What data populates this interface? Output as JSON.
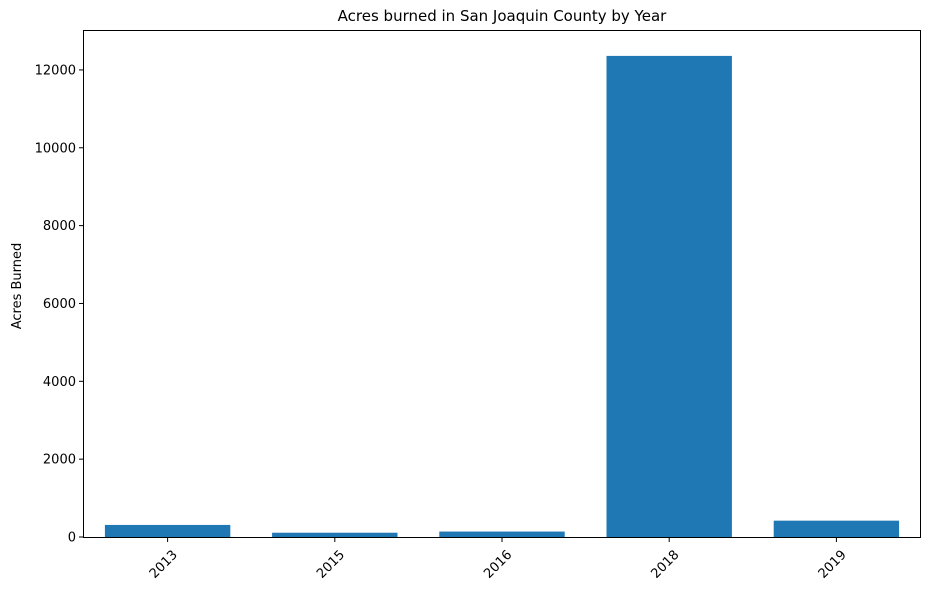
{
  "chart_data": {
    "type": "bar",
    "title": "Acres burned in San Joaquin County by Year",
    "xlabel": "",
    "ylabel": "Acres Burned",
    "categories": [
      "2013",
      "2015",
      "2016",
      "2018",
      "2019"
    ],
    "values": [
      310,
      110,
      140,
      12360,
      420
    ],
    "ylim": [
      0,
      13000
    ],
    "yticks": [
      0,
      2000,
      4000,
      6000,
      8000,
      10000,
      12000
    ],
    "ytick_labels": [
      "0",
      "2000",
      "4000",
      "6000",
      "8000",
      "10000",
      "12000"
    ],
    "bar_color": "#1f77b4",
    "grid": false,
    "legend": "none"
  }
}
